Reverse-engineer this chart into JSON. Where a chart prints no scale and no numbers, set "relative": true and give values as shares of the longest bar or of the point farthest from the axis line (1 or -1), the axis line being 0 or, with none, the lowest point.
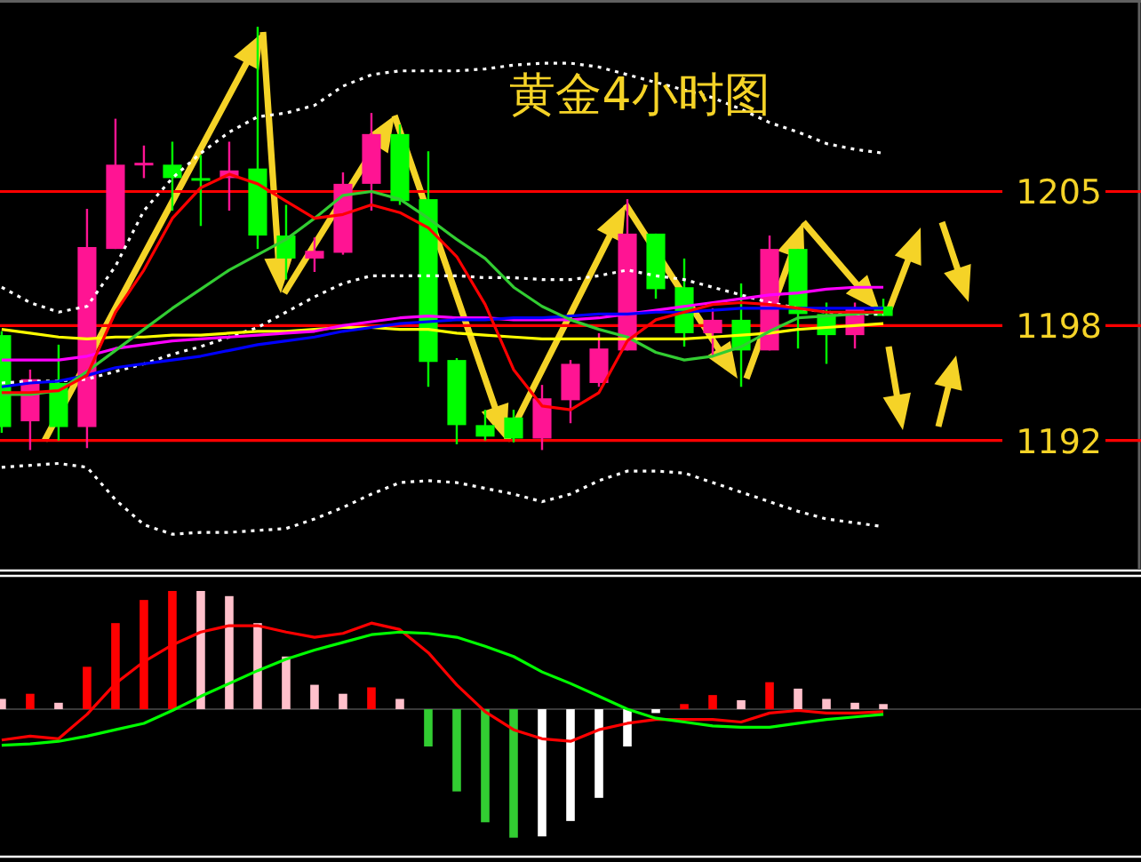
{
  "chart_data": [
    {
      "type": "candlestick",
      "title": "黄金4小时图",
      "categories": [
        null,
        null,
        null,
        null,
        null,
        null,
        null,
        null,
        null,
        null,
        null,
        null,
        null,
        null,
        null,
        null,
        null,
        null,
        null,
        null,
        null,
        null,
        null,
        null,
        null,
        null,
        null,
        null,
        null,
        null,
        null,
        null
      ],
      "ohlc": [
        [
          1197.5,
          1197.7,
          1192.4,
          1192.7
        ],
        [
          1193.0,
          1195.7,
          1191.5,
          1195.2
        ],
        [
          1195.0,
          1197.0,
          1192.0,
          1192.7
        ],
        [
          1192.7,
          1204.1,
          1191.6,
          1202.1
        ],
        [
          1202.0,
          1208.8,
          1202.0,
          1206.4
        ],
        [
          1206.4,
          1207.4,
          1205.7,
          1206.5
        ],
        [
          1206.4,
          1207.6,
          1204.0,
          1205.7
        ],
        [
          1205.7,
          1206.9,
          1203.2,
          1205.6
        ],
        [
          1205.7,
          1207.6,
          1204.0,
          1206.1
        ],
        [
          1206.2,
          1213.6,
          1202.0,
          1202.7
        ],
        [
          1202.7,
          1204.3,
          1200.4,
          1201.5
        ],
        [
          1201.5,
          1202.6,
          1200.8,
          1201.9
        ],
        [
          1201.8,
          1206.0,
          1201.7,
          1205.4
        ],
        [
          1205.4,
          1209.1,
          1204.0,
          1208.0
        ],
        [
          1208.0,
          1208.5,
          1204.3,
          1204.5
        ],
        [
          1204.6,
          1207.1,
          1194.8,
          1196.1
        ],
        [
          1196.2,
          1196.3,
          1191.8,
          1192.8
        ],
        [
          1192.8,
          1193.6,
          1192.0,
          1192.2
        ],
        [
          1193.2,
          1193.6,
          1191.9,
          1192.1
        ],
        [
          1192.1,
          1194.9,
          1191.5,
          1194.2
        ],
        [
          1194.1,
          1196.2,
          1192.9,
          1196.0
        ],
        [
          1195.0,
          1197.6,
          1194.8,
          1196.8
        ],
        [
          1196.7,
          1204.6,
          1196.7,
          1202.8
        ],
        [
          1202.8,
          1202.8,
          1199.4,
          1199.9
        ],
        [
          1200.0,
          1201.5,
          1196.9,
          1197.6
        ],
        [
          1197.6,
          1198.9,
          1196.4,
          1198.3
        ],
        [
          1198.3,
          1200.2,
          1194.8,
          1196.7
        ],
        [
          1196.7,
          1202.7,
          1196.7,
          1202.0
        ],
        [
          1202.0,
          1202.0,
          1196.8,
          1198.6
        ],
        [
          1198.6,
          1199.2,
          1196.0,
          1197.5
        ],
        [
          1197.5,
          1199.2,
          1196.8,
          1198.9
        ],
        [
          1199.0,
          1199.4,
          1198.5,
          1198.5
        ]
      ],
      "colors": [
        "#00ff00",
        "#ff1493",
        "#00ff00",
        "#ff1493",
        "#ff1493",
        "#ff1493",
        "#00ff00",
        "#00ff00",
        "#ff1493",
        "#00ff00",
        "#00ff00",
        "#ff1493",
        "#ff1493",
        "#ff1493",
        "#00ff00",
        "#00ff00",
        "#00ff00",
        "#00ff00",
        "#00ff00",
        "#ff1493",
        "#ff1493",
        "#ff1493",
        "#ff1493",
        "#00ff00",
        "#00ff00",
        "#ff1493",
        "#00ff00",
        "#ff1493",
        "#00ff00",
        "#00ff00",
        "#ff1493",
        "#00ff00"
      ],
      "ylim": [
        1185.3,
        1215.0
      ],
      "yticks": [
        1192,
        1198,
        1205
      ],
      "series": [
        {
          "type": "line",
          "color": "#ffffff",
          "line_style": "dotted",
          "values": [
            1200.0,
            1199.2,
            1198.7,
            1199.0,
            1201.1,
            1204.0,
            1205.7,
            1207.0,
            1208.1,
            1208.9,
            1209.1,
            1209.5,
            1210.5,
            1211.1,
            1211.3,
            1211.3,
            1211.3,
            1211.4,
            1211.6,
            1211.7,
            1211.7,
            1211.5,
            1211.1,
            1210.7,
            1210.3,
            1209.9,
            1209.3,
            1208.6,
            1208.1,
            1207.5,
            1207.2,
            1207.0
          ]
        },
        {
          "type": "line",
          "color": "#ffffff",
          "line_style": "dotted",
          "values": [
            1195.0,
            1195.1,
            1195.1,
            1195.2,
            1195.6,
            1196.0,
            1196.5,
            1196.9,
            1197.4,
            1197.9,
            1198.7,
            1199.5,
            1200.2,
            1200.6,
            1200.6,
            1200.6,
            1200.6,
            1200.5,
            1200.5,
            1200.4,
            1200.4,
            1200.6,
            1200.9,
            1200.6,
            1200.4,
            1200.0,
            1199.6,
            1199.2,
            1198.9,
            1198.7,
            1198.6,
            1198.6
          ]
        },
        {
          "type": "line",
          "color": "#ffffff",
          "line_style": "dotted",
          "values": [
            1190.6,
            1190.7,
            1190.8,
            1190.6,
            1188.9,
            1187.6,
            1187.1,
            1187.2,
            1187.2,
            1187.3,
            1187.4,
            1187.9,
            1188.5,
            1189.2,
            1189.8,
            1189.9,
            1189.8,
            1189.5,
            1189.2,
            1188.8,
            1189.2,
            1189.9,
            1190.4,
            1190.4,
            1190.3,
            1189.8,
            1189.3,
            1188.8,
            1188.3,
            1187.9,
            1187.7,
            1187.5
          ]
        },
        {
          "type": "line",
          "color": "#ffff00",
          "values": [
            1197.8,
            1197.6,
            1197.4,
            1197.3,
            1197.4,
            1197.4,
            1197.5,
            1197.5,
            1197.6,
            1197.7,
            1197.7,
            1197.8,
            1197.9,
            1197.9,
            1197.8,
            1197.8,
            1197.6,
            1197.5,
            1197.4,
            1197.3,
            1197.3,
            1197.3,
            1197.3,
            1197.3,
            1197.3,
            1197.4,
            1197.5,
            1197.6,
            1197.8,
            1197.9,
            1198.0,
            1198.1
          ]
        },
        {
          "type": "line",
          "color": "#ff00ff",
          "values": [
            1196.2,
            1196.2,
            1196.2,
            1196.4,
            1196.8,
            1197.0,
            1197.2,
            1197.3,
            1197.4,
            1197.5,
            1197.6,
            1197.7,
            1198.0,
            1198.2,
            1198.4,
            1198.5,
            1198.4,
            1198.4,
            1198.3,
            1198.3,
            1198.3,
            1198.4,
            1198.6,
            1198.8,
            1199.0,
            1199.2,
            1199.4,
            1199.6,
            1199.7,
            1199.9,
            1200.0,
            1200.0
          ]
        },
        {
          "type": "line",
          "color": "#0000ff",
          "values": [
            1194.8,
            1195.0,
            1195.1,
            1195.4,
            1195.8,
            1196.0,
            1196.2,
            1196.4,
            1196.7,
            1197.0,
            1197.2,
            1197.4,
            1197.7,
            1197.9,
            1198.1,
            1198.2,
            1198.3,
            1198.3,
            1198.4,
            1198.4,
            1198.5,
            1198.6,
            1198.6,
            1198.7,
            1198.7,
            1198.8,
            1198.9,
            1198.9,
            1198.9,
            1198.9,
            1198.9,
            1198.9
          ]
        },
        {
          "type": "line",
          "color": "#32cd32",
          "values": [
            1194.4,
            1194.4,
            1194.6,
            1195.6,
            1196.7,
            1197.8,
            1198.9,
            1199.9,
            1200.9,
            1201.7,
            1202.5,
            1203.6,
            1204.8,
            1205.0,
            1204.6,
            1203.6,
            1202.5,
            1201.5,
            1200.0,
            1199.0,
            1198.3,
            1197.8,
            1197.4,
            1196.6,
            1196.2,
            1196.4,
            1196.9,
            1197.7,
            1198.4,
            1198.5,
            1198.6,
            1198.7
          ]
        },
        {
          "type": "line",
          "color": "#ff0000",
          "values": [
            1194.5,
            1194.5,
            1194.6,
            1195.4,
            1198.7,
            1200.9,
            1203.6,
            1205.2,
            1205.9,
            1205.4,
            1204.5,
            1203.6,
            1203.8,
            1204.3,
            1203.9,
            1203.1,
            1201.6,
            1199.1,
            1195.7,
            1193.8,
            1193.6,
            1194.5,
            1197.2,
            1198.3,
            1198.7,
            1199.1,
            1199.2,
            1199.1,
            1198.9,
            1198.7,
            1198.7,
            1198.7
          ]
        }
      ],
      "ref_lines": [
        {
          "axis": "y",
          "value": 1205,
          "color": "#ff0000"
        },
        {
          "axis": "y",
          "value": 1198,
          "color": "#ff0000"
        },
        {
          "axis": "y",
          "value": 1192,
          "color": "#ff0000"
        }
      ]
    },
    {
      "type": "bar",
      "relative": true,
      "categories": [
        null,
        null,
        null,
        null,
        null,
        null,
        null,
        null,
        null,
        null,
        null,
        null,
        null,
        null,
        null,
        null,
        null,
        null,
        null,
        null,
        null,
        null,
        null,
        null,
        null,
        null,
        null,
        null,
        null,
        null,
        null,
        null
      ],
      "series": [
        {
          "type": "bar",
          "values": [
            0.08,
            0.12,
            0.05,
            0.33,
            0.67,
            0.85,
            0.92,
            0.92,
            0.88,
            0.67,
            0.41,
            0.19,
            0.12,
            0.17,
            0.08,
            -0.29,
            -0.64,
            -0.88,
            -1,
            -0.99,
            -0.87,
            -0.69,
            -0.29,
            -0.03,
            0.04,
            0.11,
            0.07,
            0.21,
            0.16,
            0.08,
            0.05,
            0.04
          ],
          "colors": [
            "#ffc0cb",
            "#ff0000",
            "#ffc0cb",
            "#ff0000",
            "#ff0000",
            "#ff0000",
            "#ff0000",
            "#ffc0cb",
            "#ffc0cb",
            "#ffc0cb",
            "#ffc0cb",
            "#ffc0cb",
            "#ffc0cb",
            "#ff0000",
            "#ffc0cb",
            "#32cd32",
            "#32cd32",
            "#32cd32",
            "#32cd32",
            "#ffffff",
            "#ffffff",
            "#ffffff",
            "#ffffff",
            "#ffffff",
            "#ff0000",
            "#ff0000",
            "#ffc0cb",
            "#ff0000",
            "#ffc0cb",
            "#ffc0cb",
            "#ffc0cb",
            "#ffc0cb"
          ]
        },
        {
          "type": "line",
          "color": "#ff0000",
          "values": [
            -0.24,
            -0.21,
            -0.23,
            -0.04,
            0.2,
            0.37,
            0.5,
            0.6,
            0.65,
            0.65,
            0.6,
            0.56,
            0.59,
            0.67,
            0.62,
            0.44,
            0.19,
            -0.02,
            -0.16,
            -0.23,
            -0.25,
            -0.16,
            -0.11,
            -0.08,
            -0.08,
            -0.08,
            -0.1,
            -0.03,
            -0.01,
            -0.03,
            -0.03,
            -0.02
          ]
        },
        {
          "type": "line",
          "color": "#00ff00",
          "values": [
            -0.28,
            -0.27,
            -0.25,
            -0.21,
            -0.16,
            -0.11,
            -0.01,
            0.1,
            0.2,
            0.3,
            0.39,
            0.46,
            0.52,
            0.58,
            0.6,
            0.59,
            0.56,
            0.49,
            0.41,
            0.29,
            0.2,
            0.1,
            0,
            -0.07,
            -0.1,
            -0.13,
            -0.14,
            -0.14,
            -0.11,
            -0.08,
            -0.06,
            -0.04
          ]
        }
      ]
    }
  ]
}
